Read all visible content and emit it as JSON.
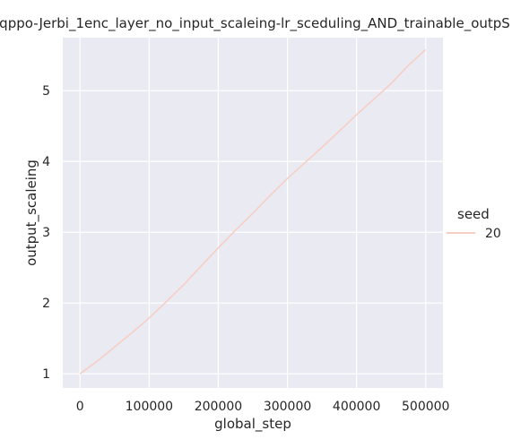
{
  "chart_data": {
    "type": "line",
    "title": "qppo-Jerbi_1enc_layer_no_input_scaleing-lr_sceduling_AND_trainable_outpS",
    "xlabel": "global_step",
    "ylabel": "output_scaleing",
    "xlim": [
      -25000,
      525000
    ],
    "ylim": [
      0.8,
      5.75
    ],
    "xticks": [
      0,
      100000,
      200000,
      300000,
      400000,
      500000
    ],
    "yticks": [
      1,
      2,
      3,
      4,
      5
    ],
    "grid": true,
    "background": "#eaeaf2",
    "gridColor": "#ffffff",
    "legend": {
      "title": "seed",
      "placement": "right",
      "entries": [
        {
          "name": "20",
          "color": "#f6cfc4"
        }
      ]
    },
    "series": [
      {
        "name": "20",
        "color": "#f6cfc4",
        "x": [
          0,
          25000,
          50000,
          75000,
          100000,
          125000,
          150000,
          175000,
          200000,
          225000,
          250000,
          275000,
          300000,
          325000,
          350000,
          375000,
          400000,
          425000,
          450000,
          475000,
          500000
        ],
        "y": [
          1.0,
          1.18,
          1.38,
          1.58,
          1.79,
          2.02,
          2.26,
          2.52,
          2.78,
          3.03,
          3.27,
          3.52,
          3.76,
          3.98,
          4.2,
          4.43,
          4.66,
          4.88,
          5.1,
          5.36,
          5.58
        ]
      }
    ]
  }
}
